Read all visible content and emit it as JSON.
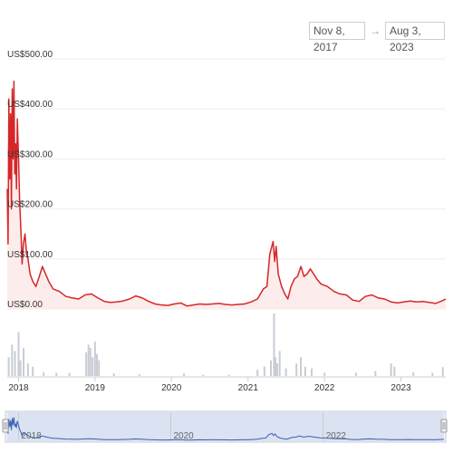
{
  "range_selector": {
    "from": "Nov 8, 2017",
    "arrow": "→",
    "to": "Aug 3, 2023"
  },
  "colors": {
    "price_line": "#d62728",
    "price_fill": "#fdecec",
    "volume": "#c8ccd4",
    "navigator_line": "#3a5fb8",
    "navigator_fill": "#dbe2f1",
    "grid": "#eeeeee"
  },
  "chart_data": {
    "type": "line",
    "y_tick_labels": [
      "US$0.00",
      "US$100.00",
      "US$200.00",
      "US$300.00",
      "US$400.00",
      "US$500.00"
    ],
    "y_ticks": [
      0,
      100,
      200,
      300,
      400,
      500
    ],
    "ylim": [
      0,
      500
    ],
    "x_tick_labels": [
      "2018",
      "2019",
      "2020",
      "2021",
      "2022",
      "2023"
    ],
    "x_ticks": [
      "2018-01-01",
      "2019-01-01",
      "2020-01-01",
      "2021-01-01",
      "2022-01-01",
      "2023-01-01"
    ],
    "xlim": [
      "2017-11-08",
      "2023-08-03"
    ],
    "navigator_labels": [
      "2018",
      "2020",
      "2022"
    ],
    "navigator_ticks": [
      "2018-01-01",
      "2020-01-01",
      "2022-01-01"
    ],
    "grid": true,
    "series": [
      {
        "points": [
          [
            "2017-11-08",
            240
          ],
          [
            "2017-11-12",
            130
          ],
          [
            "2017-11-16",
            420
          ],
          [
            "2017-11-20",
            260
          ],
          [
            "2017-11-24",
            390
          ],
          [
            "2017-11-28",
            200
          ],
          [
            "2017-12-02",
            440
          ],
          [
            "2017-12-06",
            300
          ],
          [
            "2017-12-10",
            455
          ],
          [
            "2017-12-14",
            270
          ],
          [
            "2017-12-18",
            330
          ],
          [
            "2017-12-22",
            240
          ],
          [
            "2017-12-26",
            380
          ],
          [
            "2018-01-01",
            300
          ],
          [
            "2018-01-06",
            220
          ],
          [
            "2018-01-12",
            160
          ],
          [
            "2018-01-18",
            90
          ],
          [
            "2018-01-24",
            130
          ],
          [
            "2018-02-01",
            150
          ],
          [
            "2018-02-08",
            110
          ],
          [
            "2018-02-15",
            100
          ],
          [
            "2018-02-25",
            70
          ],
          [
            "2018-03-10",
            55
          ],
          [
            "2018-03-25",
            45
          ],
          [
            "2018-04-10",
            65
          ],
          [
            "2018-04-25",
            85
          ],
          [
            "2018-05-10",
            70
          ],
          [
            "2018-05-25",
            55
          ],
          [
            "2018-06-15",
            40
          ],
          [
            "2018-07-15",
            35
          ],
          [
            "2018-08-15",
            25
          ],
          [
            "2018-09-15",
            22
          ],
          [
            "2018-10-15",
            20
          ],
          [
            "2018-11-15",
            28
          ],
          [
            "2018-12-15",
            30
          ],
          [
            "2019-01-15",
            22
          ],
          [
            "2019-02-15",
            15
          ],
          [
            "2019-03-15",
            13
          ],
          [
            "2019-04-15",
            14
          ],
          [
            "2019-05-15",
            16
          ],
          [
            "2019-06-15",
            20
          ],
          [
            "2019-07-15",
            26
          ],
          [
            "2019-08-15",
            22
          ],
          [
            "2019-09-15",
            15
          ],
          [
            "2019-10-15",
            10
          ],
          [
            "2019-11-15",
            8
          ],
          [
            "2019-12-15",
            7
          ],
          [
            "2020-01-15",
            10
          ],
          [
            "2020-02-15",
            12
          ],
          [
            "2020-03-15",
            6
          ],
          [
            "2020-04-15",
            8
          ],
          [
            "2020-05-15",
            10
          ],
          [
            "2020-06-15",
            9
          ],
          [
            "2020-07-15",
            10
          ],
          [
            "2020-08-15",
            11
          ],
          [
            "2020-09-15",
            9
          ],
          [
            "2020-10-15",
            8
          ],
          [
            "2020-11-15",
            9
          ],
          [
            "2020-12-15",
            10
          ],
          [
            "2021-01-15",
            14
          ],
          [
            "2021-02-15",
            20
          ],
          [
            "2021-03-15",
            40
          ],
          [
            "2021-04-01",
            45
          ],
          [
            "2021-04-15",
            110
          ],
          [
            "2021-05-01",
            135
          ],
          [
            "2021-05-08",
            95
          ],
          [
            "2021-05-15",
            125
          ],
          [
            "2021-05-25",
            70
          ],
          [
            "2021-06-10",
            45
          ],
          [
            "2021-06-25",
            30
          ],
          [
            "2021-07-10",
            20
          ],
          [
            "2021-07-25",
            45
          ],
          [
            "2021-08-10",
            60
          ],
          [
            "2021-08-25",
            65
          ],
          [
            "2021-09-10",
            85
          ],
          [
            "2021-09-25",
            65
          ],
          [
            "2021-10-10",
            70
          ],
          [
            "2021-10-25",
            80
          ],
          [
            "2021-11-10",
            70
          ],
          [
            "2021-11-25",
            60
          ],
          [
            "2021-12-15",
            50
          ],
          [
            "2022-01-15",
            45
          ],
          [
            "2022-02-15",
            35
          ],
          [
            "2022-03-15",
            30
          ],
          [
            "2022-04-15",
            28
          ],
          [
            "2022-05-15",
            18
          ],
          [
            "2022-06-15",
            15
          ],
          [
            "2022-07-15",
            25
          ],
          [
            "2022-08-15",
            28
          ],
          [
            "2022-09-15",
            22
          ],
          [
            "2022-10-15",
            20
          ],
          [
            "2022-11-15",
            14
          ],
          [
            "2022-12-15",
            12
          ],
          [
            "2023-01-15",
            14
          ],
          [
            "2023-02-15",
            16
          ],
          [
            "2023-03-15",
            14
          ],
          [
            "2023-04-15",
            15
          ],
          [
            "2023-05-15",
            13
          ],
          [
            "2023-06-15",
            11
          ],
          [
            "2023-07-15",
            16
          ],
          [
            "2023-08-03",
            20
          ]
        ]
      }
    ],
    "volume_bars": [
      [
        "2017-11-15",
        0.3
      ],
      [
        "2017-12-01",
        0.5
      ],
      [
        "2017-12-15",
        0.4
      ],
      [
        "2018-01-01",
        0.7
      ],
      [
        "2018-01-10",
        0.25
      ],
      [
        "2018-01-25",
        0.45
      ],
      [
        "2018-02-15",
        0.2
      ],
      [
        "2018-03-10",
        0.15
      ],
      [
        "2018-05-01",
        0.06
      ],
      [
        "2018-07-01",
        0.05
      ],
      [
        "2018-09-01",
        0.05
      ],
      [
        "2018-11-20",
        0.38
      ],
      [
        "2018-12-01",
        0.5
      ],
      [
        "2018-12-10",
        0.45
      ],
      [
        "2018-12-20",
        0.3
      ],
      [
        "2019-01-01",
        0.55
      ],
      [
        "2019-01-10",
        0.35
      ],
      [
        "2019-01-20",
        0.25
      ],
      [
        "2019-04-01",
        0.04
      ],
      [
        "2019-08-01",
        0.03
      ],
      [
        "2020-03-01",
        0.04
      ],
      [
        "2020-06-01",
        0.02
      ],
      [
        "2020-10-01",
        0.02
      ],
      [
        "2021-02-15",
        0.1
      ],
      [
        "2021-03-20",
        0.15
      ],
      [
        "2021-04-20",
        0.25
      ],
      [
        "2021-05-05",
        1.0
      ],
      [
        "2021-05-12",
        0.3
      ],
      [
        "2021-05-20",
        0.2
      ],
      [
        "2021-06-01",
        0.4
      ],
      [
        "2021-07-01",
        0.12
      ],
      [
        "2021-08-20",
        0.2
      ],
      [
        "2021-09-10",
        0.3
      ],
      [
        "2021-10-01",
        0.15
      ],
      [
        "2021-11-01",
        0.12
      ],
      [
        "2022-01-01",
        0.05
      ],
      [
        "2022-06-01",
        0.05
      ],
      [
        "2022-09-01",
        0.08
      ],
      [
        "2022-11-15",
        0.2
      ],
      [
        "2022-12-01",
        0.15
      ],
      [
        "2023-03-01",
        0.06
      ],
      [
        "2023-06-01",
        0.05
      ],
      [
        "2023-07-20",
        0.14
      ]
    ]
  }
}
